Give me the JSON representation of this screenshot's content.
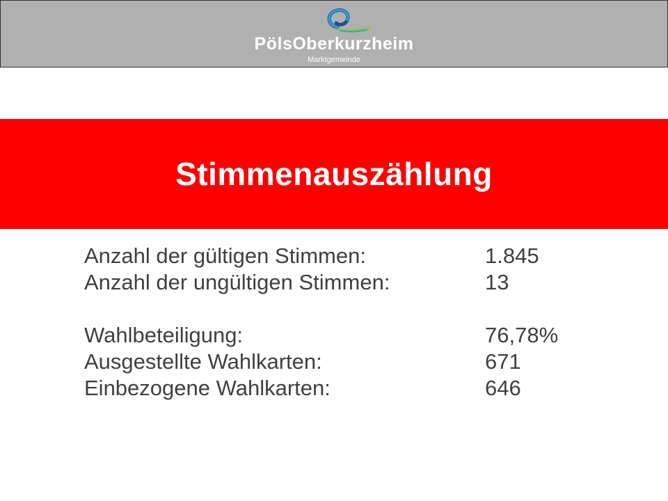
{
  "header": {
    "brand_name": "PölsOberkurzheim",
    "brand_subtitle": "Marktgemeinde",
    "logo_icon": "swirl-logo-icon",
    "colors": {
      "background": "#b0b0b0",
      "logo_blue": "#2aa7d8",
      "logo_green": "#8cc63f",
      "logo_dark": "#1f4f8f"
    }
  },
  "banner": {
    "title": "Stimmenauszählung",
    "color": "#ff0000"
  },
  "stats": {
    "group1": [
      {
        "label": "Anzahl der gültigen Stimmen:",
        "value": "1.845"
      },
      {
        "label": "Anzahl der ungültigen Stimmen:",
        "value": "13"
      }
    ],
    "group2": [
      {
        "label": "Wahlbeteiligung:",
        "value": "76,78%"
      },
      {
        "label": "Ausgestellte Wahlkarten:",
        "value": "671"
      },
      {
        "label": "Einbezogene Wahlkarten:",
        "value": "646"
      }
    ]
  }
}
